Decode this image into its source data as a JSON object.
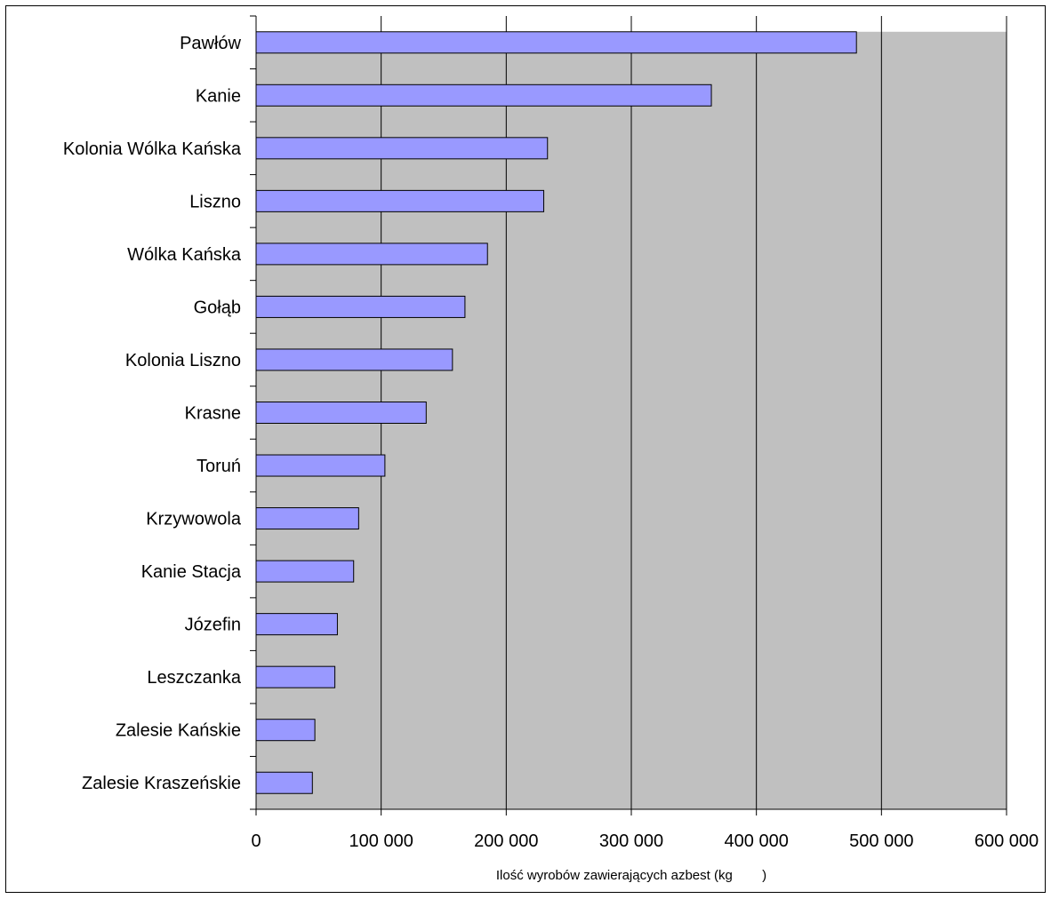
{
  "colors": {
    "plot_area": "#c0c0c0",
    "bar_fill": "#9999ff",
    "bar_stroke": "#000000",
    "gridline": "#000000",
    "background": "#ffffff"
  },
  "chart_data": {
    "type": "bar",
    "orientation": "horizontal",
    "title": "",
    "xlabel": "Ilość wyrobów zawierających azbest (kg        )",
    "ylabel": "",
    "xlim": [
      0,
      600000
    ],
    "x_ticks": [
      0,
      100000,
      200000,
      300000,
      400000,
      500000,
      600000
    ],
    "x_tick_labels": [
      "0",
      "100 000",
      "200 000",
      "300 000",
      "400 000",
      "500 000",
      "600 000"
    ],
    "grid": "vertical major gridlines",
    "legend": "none",
    "categories": [
      "Pawłów",
      "Kanie",
      "Kolonia Wólka Kańska",
      "Liszno",
      "Wólka Kańska",
      "Gołąb",
      "Kolonia Liszno",
      "Krasne",
      "Toruń",
      "Krzywowola",
      "Kanie Stacja",
      "Józefin",
      "Leszczanka",
      "Zalesie Kańskie",
      "Zalesie Kraszeńskie"
    ],
    "values": [
      480000,
      364000,
      233000,
      230000,
      185000,
      167000,
      157000,
      136000,
      103000,
      82000,
      78000,
      65000,
      63000,
      47000,
      45000
    ]
  }
}
